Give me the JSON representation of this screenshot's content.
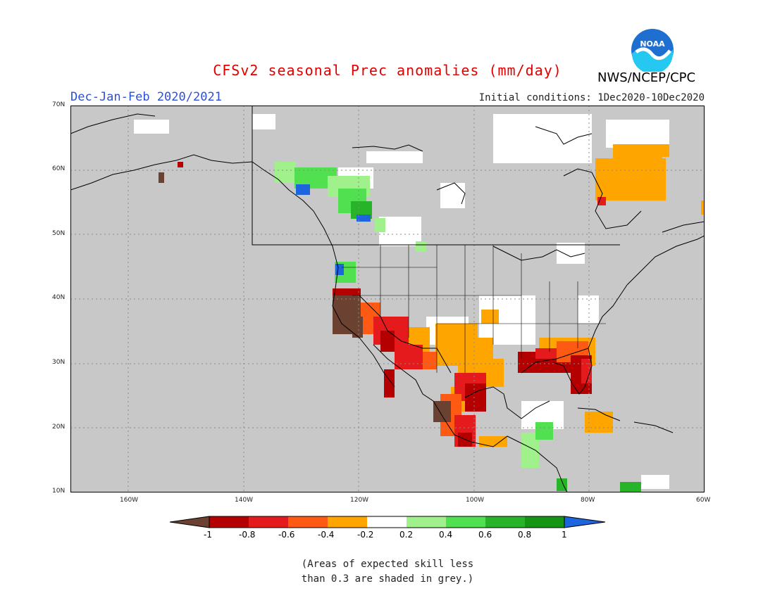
{
  "header": {
    "title": "CFSv2 seasonal Prec anomalies (mm/day)",
    "season": "Dec-Jan-Feb 2020/2021",
    "initial_conditions": "Initial conditions: 1Dec2020-10Dec2020",
    "agency": "NWS/NCEP/CPC",
    "logo_text": "NOAA"
  },
  "axes": {
    "lon_labels": [
      "160W",
      "140W",
      "120W",
      "100W",
      "80W",
      "60W"
    ],
    "lat_labels": [
      "10N",
      "20N",
      "30N",
      "40N",
      "50N",
      "60N",
      "70N"
    ]
  },
  "colorbar": {
    "labels": [
      "-1",
      "-0.8",
      "-0.6",
      "-0.4",
      "-0.2",
      "0.2",
      "0.4",
      "0.6",
      "0.8",
      "1"
    ],
    "colors": [
      "#6b4232",
      "#b40000",
      "#e41a1c",
      "#ff5a14",
      "#ffa500",
      "#ffffff",
      "#a0f08c",
      "#50e050",
      "#28b428",
      "#149614",
      "#1e64dc"
    ]
  },
  "colors": {
    "skill_grey": "#c8c8c8",
    "title_red": "#e00000",
    "season_blue": "#2c4fd8"
  },
  "note": {
    "line1": "(Areas of expected skill less",
    "line2": "than 0.3 are shaded in grey.)"
  }
}
